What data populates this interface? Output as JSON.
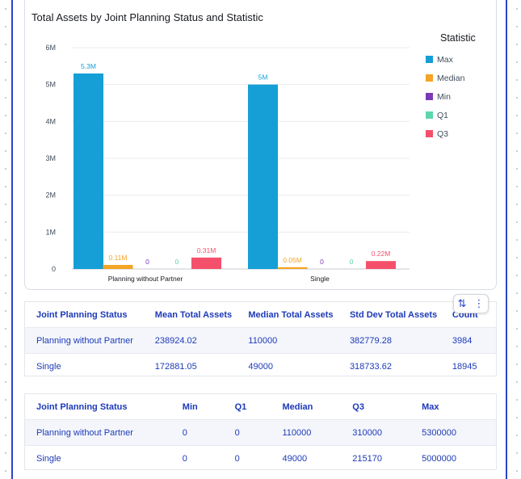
{
  "chart_data": {
    "type": "bar",
    "title": "Total Assets by Joint Planning Status and Statistic",
    "categories": [
      "Planning without Partner",
      "Single"
    ],
    "series": [
      {
        "name": "Max",
        "color": "#159fd6",
        "values": [
          5300000,
          5000000
        ],
        "labels": [
          "5.3M",
          "5M"
        ]
      },
      {
        "name": "Median",
        "color": "#f5a425",
        "values": [
          110000,
          49000
        ],
        "labels": [
          "0.11M",
          "0.05M"
        ]
      },
      {
        "name": "Min",
        "color": "#7b3ab5",
        "values": [
          0,
          0
        ],
        "labels": [
          "0",
          "0"
        ]
      },
      {
        "name": "Q1",
        "color": "#5ed6ab",
        "values": [
          0,
          0
        ],
        "labels": [
          "0",
          "0"
        ]
      },
      {
        "name": "Q3",
        "color": "#f5506b",
        "values": [
          310000,
          215170
        ],
        "labels": [
          "0.31M",
          "0.22M"
        ]
      }
    ],
    "ylim": [
      0,
      6000000
    ],
    "yticks": [
      0,
      1000000,
      2000000,
      3000000,
      4000000,
      5000000,
      6000000
    ],
    "ytick_labels": [
      "0",
      "1M",
      "2M",
      "3M",
      "4M",
      "5M",
      "6M"
    ],
    "legend_title": "Statistic",
    "legend_position": "right",
    "grid": true
  },
  "summary_table": {
    "headers": [
      "Joint Planning Status",
      "Mean Total Assets",
      "Median Total Assets",
      "Std Dev Total Assets",
      "Count"
    ],
    "rows": [
      [
        "Planning without Partner",
        "238924.02",
        "110000",
        "382779.28",
        "3984"
      ],
      [
        "Single",
        "172881.05",
        "49000",
        "318733.62",
        "18945"
      ]
    ]
  },
  "quartile_table": {
    "headers": [
      "Joint Planning Status",
      "Min",
      "Q1",
      "Median",
      "Q3",
      "Max"
    ],
    "rows": [
      [
        "Planning without Partner",
        "0",
        "0",
        "110000",
        "310000",
        "5300000"
      ],
      [
        "Single",
        "0",
        "0",
        "49000",
        "215170",
        "5000000"
      ]
    ]
  }
}
